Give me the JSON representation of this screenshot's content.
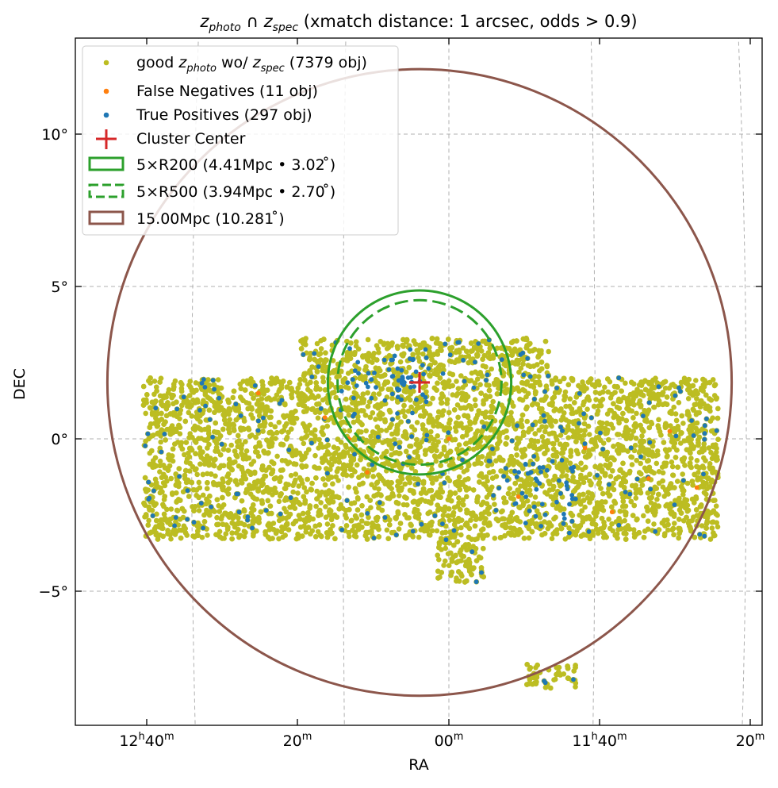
{
  "chart_data": {
    "type": "scatter",
    "title": {
      "z1": "z",
      "z1_sub": "photo",
      "cap": "∩",
      "z2": "z",
      "z2_sub": "spec",
      "rest": "(xmatch distance: 1 arcsec, odds > 0.9)"
    },
    "xlabel": "RA",
    "ylabel": "DEC",
    "x_ticks": [
      {
        "hour": "12",
        "min": "40"
      },
      {
        "hour": "",
        "min": "20"
      },
      {
        "hour": "",
        "min": "00"
      },
      {
        "hour": "11",
        "min": "40"
      },
      {
        "hour": "",
        "min": "20"
      }
    ],
    "y_ticks": [
      "10°",
      "5°",
      "0°",
      "−5°"
    ],
    "y_tick_values": [
      10,
      5,
      0,
      -5
    ],
    "grid": true,
    "legend_position": "top-left",
    "colors": {
      "good": "#bcbd22",
      "fn": "#ff7f0e",
      "tp": "#1f77b4",
      "center": "#d62728",
      "r200": "#2ca02c",
      "mpc": "#8c564b",
      "grid": "#b0b0b0"
    },
    "legend": {
      "good_pre": "good",
      "good_z1": "z",
      "good_z1_sub": "photo",
      "good_mid": "wo/",
      "good_z2": "z",
      "good_z2_sub": "spec",
      "good_post": "(7379 obj)",
      "fn": "False Negatives (11 obj)",
      "tp": "True Positives (297 obj)",
      "center": "Cluster Center",
      "r200": "5×R200 (4.41Mpc • 3.02 ̊)",
      "r500": "5×R500 (3.94Mpc • 2.70 ̊)",
      "mpc": "15.00Mpc (10.281 ̊)"
    },
    "cluster_center": {
      "ra_hms": "12h06m",
      "dec": 1.85
    },
    "circles": [
      {
        "name": "5×R200",
        "radius_deg": 3.02
      },
      {
        "name": "5×R500",
        "radius_deg": 2.7
      },
      {
        "name": "15.00Mpc",
        "radius_deg": 10.281
      }
    ],
    "series": [
      {
        "name": "good z_photo wo/ z_spec",
        "count": 7379
      },
      {
        "name": "False Negatives",
        "count": 11
      },
      {
        "name": "True Positives",
        "count": 297
      }
    ],
    "footprint": {
      "ra_range_deg": [
        172.6,
        191.6
      ],
      "dec_main": [
        -3.3,
        2.0
      ],
      "dec_ext": [
        2.0,
        3.3
      ],
      "ra_ext": [
        178.2,
        186.4
      ],
      "dec_south": [
        -4.7,
        -3.3
      ],
      "ra_south": [
        180.3,
        181.9
      ],
      "dec_island": [
        -8.2,
        -7.4
      ],
      "ra_island": [
        177.2,
        178.9
      ]
    },
    "fn_points": [
      {
        "ra": 187.8,
        "dec": 1.5
      },
      {
        "ra": 184.8,
        "dec": 0.0
      },
      {
        "ra": 184.2,
        "dec": -1.1
      },
      {
        "ra": 181.5,
        "dec": 0.0
      },
      {
        "ra": 179.2,
        "dec": -1.9
      },
      {
        "ra": 176.1,
        "dec": -2.4
      },
      {
        "ra": 174.2,
        "dec": 0.25
      },
      {
        "ra": 173.3,
        "dec": -1.6
      },
      {
        "ra": 174.9,
        "dec": -1.3
      },
      {
        "ra": 185.6,
        "dec": 0.7
      },
      {
        "ra": 177.0,
        "dec": -0.3
      }
    ]
  }
}
